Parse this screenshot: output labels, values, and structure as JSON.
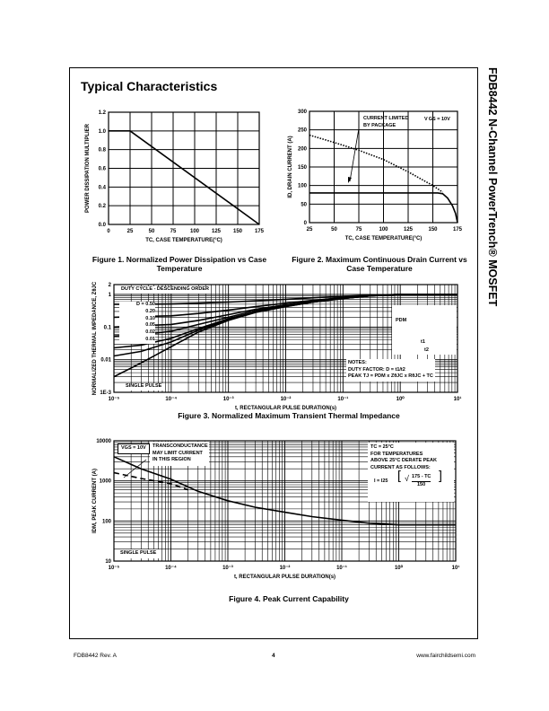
{
  "side_title": "FDB8442 N-Channel PowerTrench® MOSFET",
  "section_title": "Typical Characteristics",
  "footer": {
    "left": "FDB8442 Rev. A",
    "page": "4",
    "right": "www.fairchildsemi.com"
  },
  "figures": {
    "fig1": {
      "caption1": "Figure 1.  Normalized Power Dissipation vs Case",
      "caption2": "Temperature"
    },
    "fig2": {
      "caption1": "Figure 2.  Maximum Continuous Drain Current vs",
      "caption2": "Case Temperature",
      "ann1": "CURRENT LIMITED",
      "ann2": "BY PACKAGE",
      "vgs": "V GS = 10V"
    },
    "fig3": {
      "caption": "Figure 3.  Normalized Maximum Transient Thermal Impedance",
      "duty_label": "DUTY CYCLE - DESCENDING ORDER",
      "single_pulse": "SINGLE PULSE",
      "d_labels": [
        "D = 0.50",
        "0.20",
        "0.10",
        "0.05",
        "0.02",
        "0.01"
      ],
      "pdm": "PDM",
      "t1": "t1",
      "t2": "t2",
      "notes": "NOTES:",
      "duty_factor": "DUTY FACTOR: D = t1/t2",
      "peak": "PEAK TJ = PDM x ZθJC x RθJC + TC"
    },
    "fig4": {
      "caption": "Figure 4.  Peak Current Capability",
      "vgs": "VGS = 10V",
      "trans1": "TRANSCONDUCTANCE",
      "trans2": "MAY LIMIT CURRENT",
      "trans3": "IN THIS REGION",
      "tc": "TC = 25°C",
      "d1": "FOR TEMPERATURES",
      "d2": "ABOVE 25°C DERATE PEAK",
      "d3": "CURRENT AS FOLLOWS:",
      "formula_i": "I = I25",
      "formula_num": "175 - TC",
      "formula_den": "150",
      "single_pulse": "SINGLE PULSE"
    }
  },
  "chart_data": [
    {
      "id": "fig1",
      "type": "line",
      "xlabel": "TC, CASE TEMPERATURE(°C)",
      "ylabel": "POWER DISSIPATION MULTIPLIER",
      "xlim": [
        0,
        175
      ],
      "ylim": [
        0,
        1.2
      ],
      "xticks": [
        "0",
        "25",
        "50",
        "75",
        "100",
        "125",
        "150",
        "175"
      ],
      "xtickvals": [
        0,
        25,
        50,
        75,
        100,
        125,
        150,
        175
      ],
      "yticks": [
        "0.0",
        "0.2",
        "0.4",
        "0.6",
        "0.8",
        "1.0",
        "1.2"
      ],
      "ytickvals": [
        0,
        0.2,
        0.4,
        0.6,
        0.8,
        1.0,
        1.2
      ],
      "series": [
        {
          "name": "multiplier",
          "style": "solid",
          "points": [
            [
              0,
              1
            ],
            [
              25,
              1
            ],
            [
              175,
              0
            ]
          ]
        }
      ]
    },
    {
      "id": "fig2",
      "type": "line",
      "xlabel": "TC, CASE TEMPERATURE(°C)",
      "ylabel": "ID, DRAIN CURRENT (A)",
      "xlim": [
        25,
        175
      ],
      "ylim": [
        0,
        300
      ],
      "xticks": [
        "25",
        "50",
        "75",
        "100",
        "125",
        "150",
        "175"
      ],
      "xtickvals": [
        25,
        50,
        75,
        100,
        125,
        150,
        175
      ],
      "yticks": [
        "0",
        "50",
        "100",
        "150",
        "200",
        "250",
        "300"
      ],
      "ytickvals": [
        0,
        50,
        100,
        150,
        200,
        250,
        300
      ],
      "series": [
        {
          "name": "package limited",
          "style": "solid",
          "points": [
            [
              25,
              80
            ],
            [
              155,
              80
            ],
            [
              160,
              78
            ],
            [
              165,
              66
            ],
            [
              170,
              45
            ],
            [
              173,
              25
            ],
            [
              175,
              0
            ]
          ]
        },
        {
          "name": "silicon limited",
          "style": "dotted",
          "points": [
            [
              25,
              236
            ],
            [
              50,
              216
            ],
            [
              75,
              195
            ],
            [
              100,
              170
            ],
            [
              125,
              137
            ],
            [
              150,
              100
            ],
            [
              160,
              82
            ]
          ]
        }
      ]
    },
    {
      "id": "fig3",
      "type": "line",
      "xscale": "log",
      "yscale": "log",
      "xlabel": "t, RECTANGULAR  PULSE DURATION(s)",
      "ylabel": "NORMALIZED THERMAL IMPEDANCE, ZθJC",
      "xlim": [
        1e-05,
        10
      ],
      "ylim": [
        0.001,
        2
      ],
      "xticks": [
        "10⁻⁵",
        "10⁻⁴",
        "10⁻³",
        "10⁻²",
        "10⁻¹",
        "10⁰",
        "10¹"
      ],
      "xtickvals": [
        1e-05,
        0.0001,
        0.001,
        0.01,
        0.1,
        1,
        10
      ],
      "yticks": [
        "1E-3",
        "0.01",
        "0.1",
        "1",
        "2"
      ],
      "ytickvals": [
        0.001,
        0.01,
        0.1,
        1,
        2
      ],
      "x": [
        1e-05,
        3e-05,
        0.0001,
        0.0003,
        0.001,
        0.003,
        0.01,
        0.03,
        0.1,
        0.3,
        1,
        10
      ],
      "series": [
        {
          "name": "D = 0.50",
          "values": [
            0.5,
            0.5,
            0.51,
            0.54,
            0.58,
            0.64,
            0.71,
            0.79,
            0.875,
            0.95,
            1,
            1
          ]
        },
        {
          "name": "0.20",
          "values": [
            0.2,
            0.21,
            0.22,
            0.26,
            0.33,
            0.42,
            0.54,
            0.66,
            0.8,
            0.92,
            1,
            1
          ]
        },
        {
          "name": "0.10",
          "values": [
            0.1,
            0.11,
            0.12,
            0.16,
            0.24,
            0.35,
            0.48,
            0.62,
            0.78,
            0.91,
            1,
            1
          ]
        },
        {
          "name": "0.05",
          "values": [
            0.053,
            0.058,
            0.074,
            0.12,
            0.2,
            0.32,
            0.45,
            0.6,
            0.76,
            0.9,
            1,
            1
          ]
        },
        {
          "name": "0.02",
          "values": [
            0.023,
            0.028,
            0.045,
            0.09,
            0.18,
            0.29,
            0.43,
            0.59,
            0.75,
            0.9,
            1,
            1
          ]
        },
        {
          "name": "0.01",
          "values": [
            0.013,
            0.018,
            0.035,
            0.08,
            0.17,
            0.29,
            0.43,
            0.58,
            0.75,
            0.9,
            1,
            1
          ]
        },
        {
          "name": "SINGLE PULSE",
          "values": [
            0.003,
            0.008,
            0.025,
            0.07,
            0.16,
            0.28,
            0.42,
            0.58,
            0.75,
            0.9,
            1,
            1
          ]
        }
      ]
    },
    {
      "id": "fig4",
      "type": "line",
      "xscale": "log",
      "yscale": "log",
      "xlabel": "t, RECTANGULAR PULSE DURATION(s)",
      "ylabel": "IDM, PEAK CURRENT (A)",
      "xlim": [
        1e-05,
        10
      ],
      "ylim": [
        10,
        10000
      ],
      "xticks": [
        "10⁻⁵",
        "10⁻⁴",
        "10⁻³",
        "10⁻²",
        "10⁻¹",
        "10⁰",
        "10¹"
      ],
      "xtickvals": [
        1e-05,
        0.0001,
        0.001,
        0.01,
        0.1,
        1,
        10
      ],
      "yticks": [
        "10",
        "100",
        "1000",
        "10000"
      ],
      "ytickvals": [
        10,
        100,
        1000,
        10000
      ],
      "series": [
        {
          "name": "peak current",
          "style": "solid",
          "points": [
            [
              1e-05,
              4000
            ],
            [
              3e-05,
              2000
            ],
            [
              0.0001,
              1100
            ],
            [
              0.0003,
              550
            ],
            [
              0.001,
              320
            ],
            [
              0.003,
              220
            ],
            [
              0.01,
              165
            ],
            [
              0.03,
              128
            ],
            [
              0.1,
              105
            ],
            [
              0.3,
              88
            ],
            [
              1,
              80
            ],
            [
              10,
              80
            ]
          ]
        },
        {
          "name": "transconductance limit",
          "style": "dashed",
          "points": [
            [
              1e-05,
              1600
            ],
            [
              3e-05,
              1150
            ],
            [
              0.0001,
              850
            ],
            [
              0.0002,
              600
            ]
          ]
        }
      ]
    }
  ]
}
